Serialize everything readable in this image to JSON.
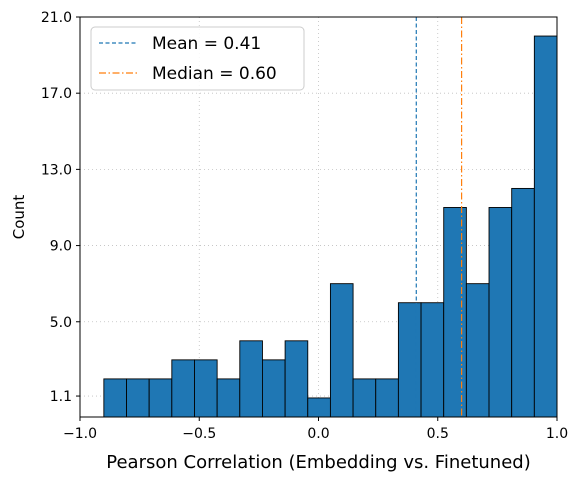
{
  "chart_data": {
    "type": "bar",
    "subtype": "histogram",
    "title": "",
    "xlabel": "Pearson Correlation (Embedding vs. Finetuned)",
    "ylabel": "Count",
    "xlim": [
      -1.0,
      1.0
    ],
    "ylim": [
      0,
      21.0
    ],
    "xticks": [
      -1.0,
      -0.5,
      0.0,
      0.5,
      1.0
    ],
    "xtick_labels": [
      "−1.0",
      "−0.5",
      "0.0",
      "0.5",
      "1.0"
    ],
    "yticks": [
      1.1,
      5.0,
      9.0,
      13.0,
      17.0,
      21.0
    ],
    "ytick_labels": [
      "1.1",
      "5.0",
      "9.0",
      "13.0",
      "17.0",
      "21.0"
    ],
    "bin_edges": [
      -0.9,
      -0.805,
      -0.71,
      -0.615,
      -0.52,
      -0.425,
      -0.33,
      -0.235,
      -0.14,
      -0.045,
      0.05,
      0.145,
      0.24,
      0.335,
      0.43,
      0.525,
      0.62,
      0.715,
      0.81,
      0.905,
      1.0
    ],
    "bins": [
      {
        "left": -0.9,
        "right": -0.805,
        "count": 2
      },
      {
        "left": -0.805,
        "right": -0.71,
        "count": 2
      },
      {
        "left": -0.71,
        "right": -0.615,
        "count": 2
      },
      {
        "left": -0.615,
        "right": -0.52,
        "count": 3
      },
      {
        "left": -0.52,
        "right": -0.425,
        "count": 3
      },
      {
        "left": -0.425,
        "right": -0.33,
        "count": 2
      },
      {
        "left": -0.33,
        "right": -0.235,
        "count": 4
      },
      {
        "left": -0.235,
        "right": -0.14,
        "count": 3
      },
      {
        "left": -0.14,
        "right": -0.045,
        "count": 4
      },
      {
        "left": -0.045,
        "right": 0.05,
        "count": 1
      },
      {
        "left": 0.05,
        "right": 0.145,
        "count": 7
      },
      {
        "left": 0.145,
        "right": 0.24,
        "count": 2
      },
      {
        "left": 0.24,
        "right": 0.335,
        "count": 2
      },
      {
        "left": 0.335,
        "right": 0.43,
        "count": 6
      },
      {
        "left": 0.43,
        "right": 0.525,
        "count": 6
      },
      {
        "left": 0.525,
        "right": 0.62,
        "count": 11
      },
      {
        "left": 0.62,
        "right": 0.715,
        "count": 7
      },
      {
        "left": 0.715,
        "right": 0.81,
        "count": 11
      },
      {
        "left": 0.81,
        "right": 0.905,
        "count": 12
      },
      {
        "left": 0.905,
        "right": 1.0,
        "count": 20
      }
    ],
    "bar_color": "#1f77b4",
    "bar_edge_color": "#000000",
    "reference_lines": [
      {
        "label": "Mean = 0.41",
        "x": 0.41,
        "color": "#1f77b4",
        "style": "dashed"
      },
      {
        "label": "Median = 0.60",
        "x": 0.6,
        "color": "#ff7f0e",
        "style": "dashdot"
      }
    ],
    "grid": true,
    "legend_position": "top-left"
  }
}
